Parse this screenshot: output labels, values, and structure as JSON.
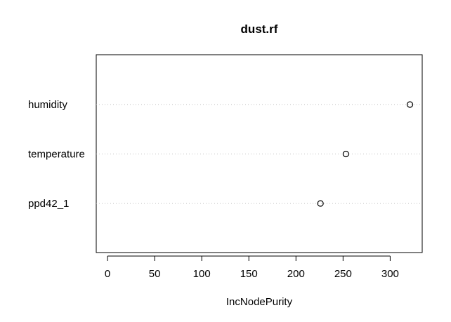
{
  "chart_data": {
    "type": "scatter",
    "title": "dust.rf",
    "xlabel": "IncNodePurity",
    "ylabel": "",
    "categories": [
      "humidity",
      "temperature",
      "ppd42_1"
    ],
    "values": [
      321,
      253,
      226
    ],
    "xlim": [
      -12,
      334
    ],
    "xticks": [
      0,
      50,
      100,
      150,
      200,
      250,
      300
    ],
    "grid": "dotted horizontal guide per category",
    "legend": "none",
    "colors": {
      "axis": "#000000",
      "point": "#000000",
      "guide": "#bebebe"
    }
  }
}
